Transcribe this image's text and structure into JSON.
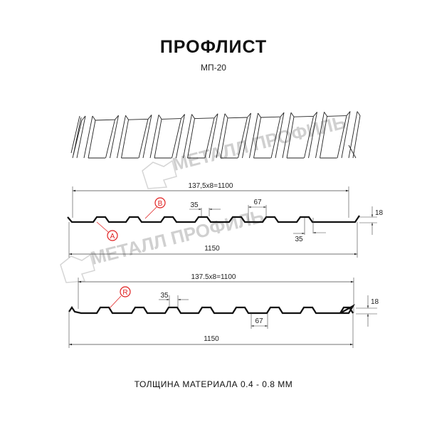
{
  "title": "ПРОФЛИСТ",
  "subtitle": "МП-20",
  "watermark": "МЕТАЛЛ ПРОФИЛЬ",
  "profile_a": {
    "pitch_label": "137,5x8=1100",
    "width_label": "1150",
    "top_width_label": "35",
    "bottom_width_label": "67",
    "lower_width_label": "35",
    "height_label": "18",
    "marker_a": "A",
    "marker_b": "B"
  },
  "profile_r": {
    "pitch_label": "137.5x8=1100",
    "width_label": "1150",
    "top_width_label": "35",
    "bottom_width_label": "67",
    "height_label": "18",
    "marker_r": "R"
  },
  "footer": "ТОЛЩИНА МАТЕРИАЛА 0.4 - 0.8 ММ",
  "colors": {
    "marker": "#e02020",
    "line": "#111111",
    "watermark": "#d0d0d0"
  }
}
